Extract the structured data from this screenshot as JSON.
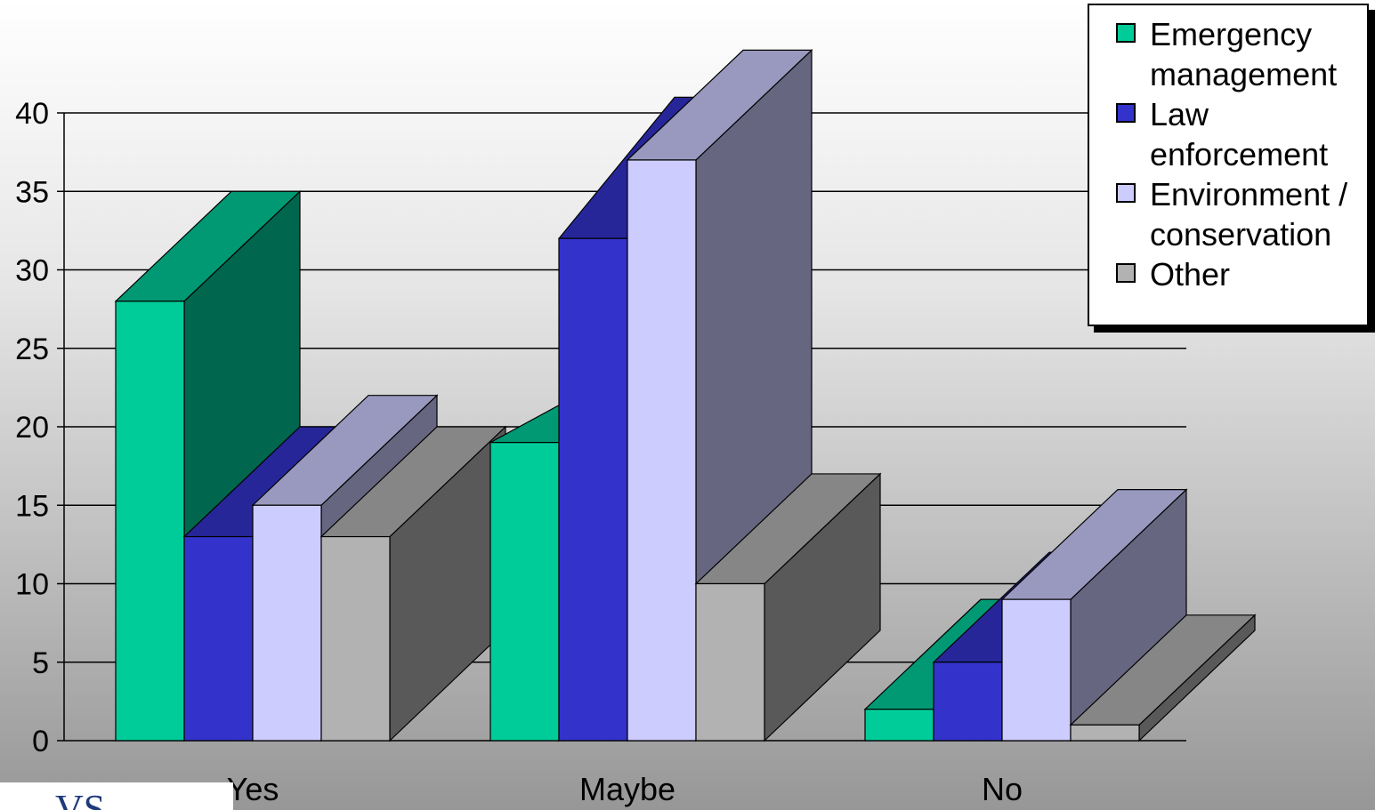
{
  "chart_data": {
    "type": "bar",
    "categories": [
      "Yes",
      "Maybe",
      "No"
    ],
    "series": [
      {
        "name": "Emergency management",
        "values": [
          28,
          19,
          2
        ],
        "color": "#00cc99"
      },
      {
        "name": "Law enforcement",
        "values": [
          13,
          32,
          5
        ],
        "color": "#3333cc"
      },
      {
        "name": "Environment / conservation",
        "values": [
          15,
          37,
          9
        ],
        "color": "#ccccff"
      },
      {
        "name": "Other",
        "values": [
          13,
          10,
          1
        ],
        "color": "#b2b2b2"
      }
    ],
    "depth_rows": {
      "Emergency management": [
        35,
        23,
        9
      ],
      "Law enforcement": [
        20,
        41,
        12
      ],
      "Environment / conservation": [
        22,
        44,
        16
      ],
      "Other": [
        20,
        17,
        8
      ]
    },
    "ylim": [
      0,
      40
    ],
    "yticks": [
      0,
      5,
      10,
      15,
      20,
      25,
      30,
      35,
      40
    ],
    "grid": true,
    "legend_position": "top-right",
    "title": "",
    "xlabel": "",
    "ylabel": ""
  },
  "legend": {
    "items": [
      {
        "label_lines": [
          "Emergency",
          "management"
        ],
        "color": "#00cc99"
      },
      {
        "label_lines": [
          "Law",
          "enforcement"
        ],
        "color": "#3333cc"
      },
      {
        "label_lines": [
          "Environment /",
          "conservation"
        ],
        "color": "#ccccff"
      },
      {
        "label_lines": [
          "Other"
        ],
        "color": "#b2b2b2"
      }
    ]
  },
  "logo": {
    "text": "VS"
  }
}
